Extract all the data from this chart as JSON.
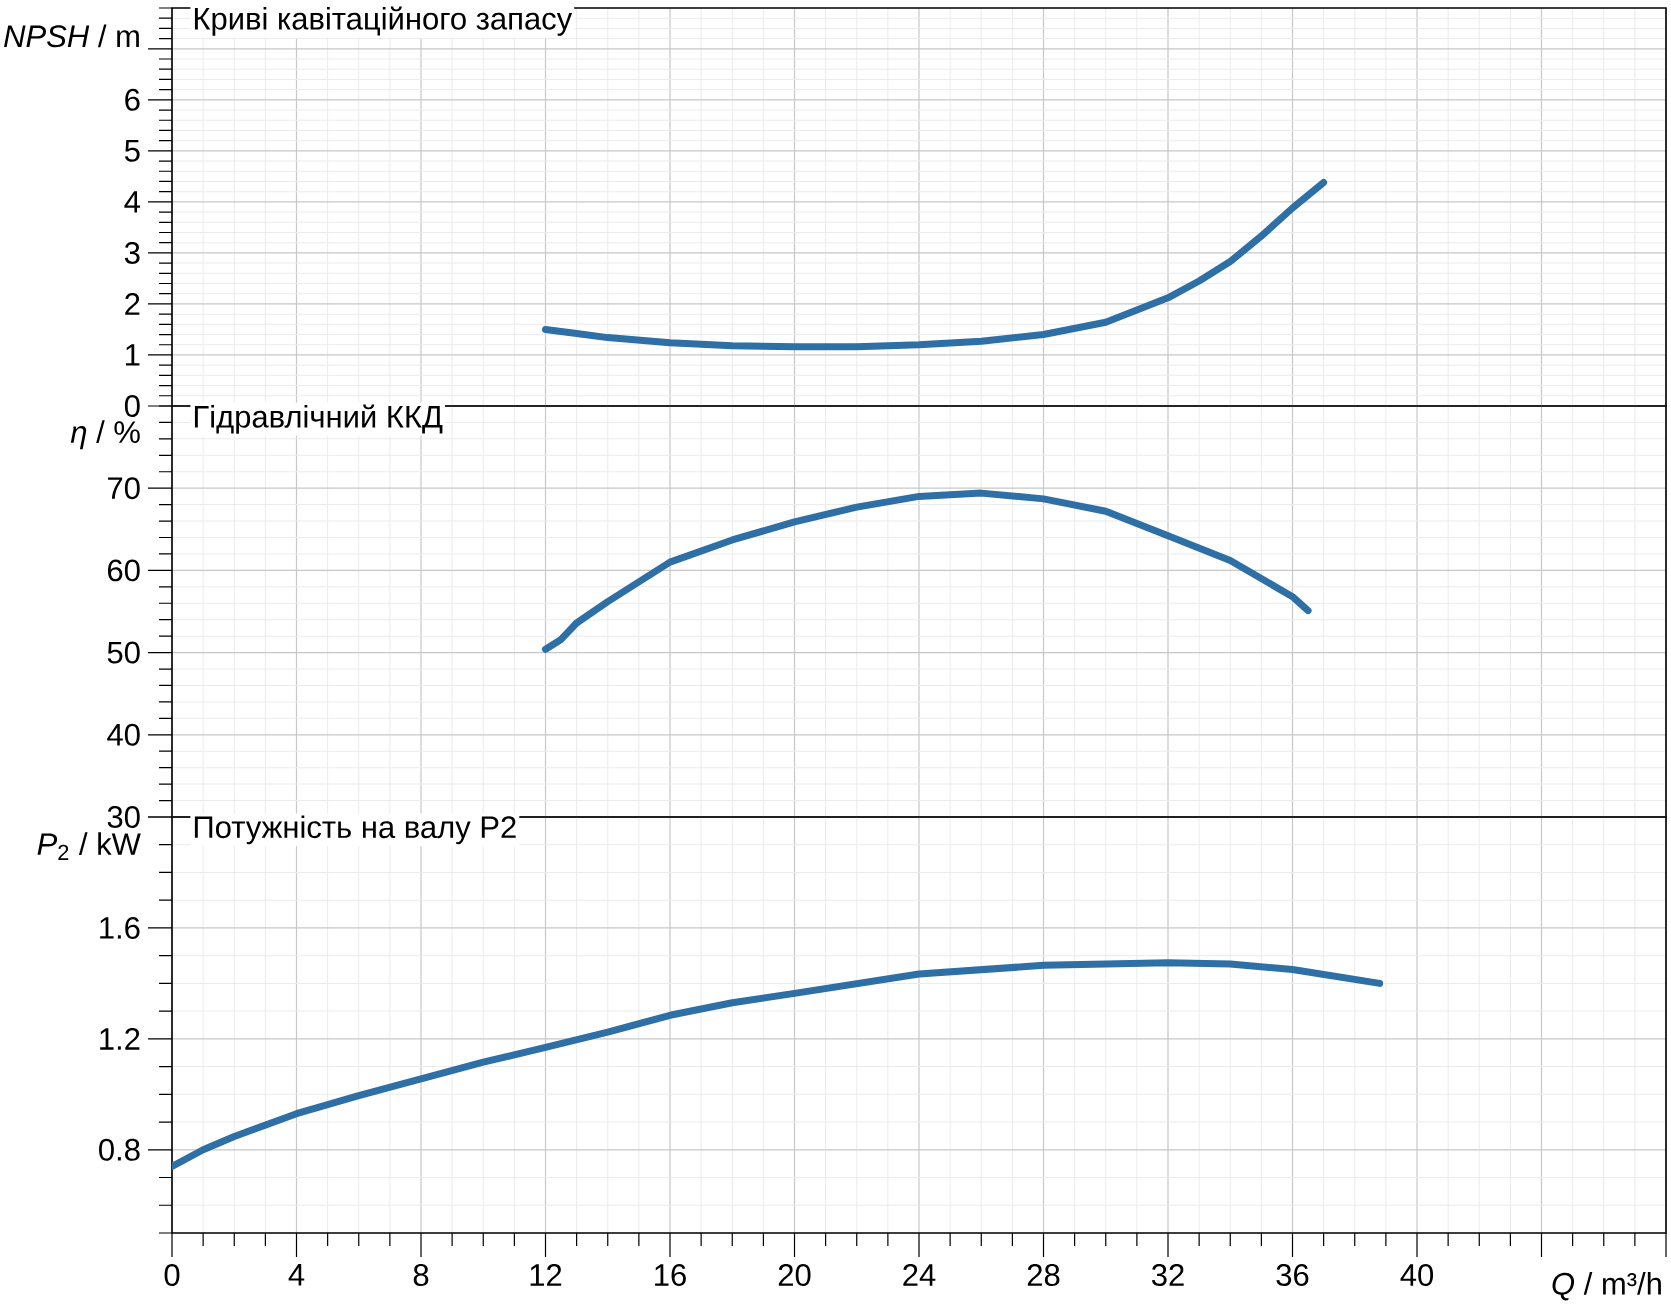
{
  "chart_data": [
    {
      "type": "line",
      "title": "Криві кавітаційного запасу",
      "ylabel": "*NPSH* / m",
      "x": [
        12,
        13,
        14,
        16,
        18,
        20,
        22,
        24,
        26,
        28,
        30,
        32,
        33,
        34,
        35,
        36,
        37
      ],
      "series": [
        {
          "color": "#2e6fa6",
          "values": [
            1.5,
            1.42,
            1.34,
            1.24,
            1.18,
            1.16,
            1.16,
            1.2,
            1.27,
            1.4,
            1.64,
            2.12,
            2.45,
            2.83,
            3.33,
            3.88,
            4.38
          ]
        }
      ],
      "xlim": [
        0,
        48
      ],
      "xticks": [
        0,
        4,
        8,
        12,
        16,
        20,
        24,
        28,
        32,
        36,
        40,
        44,
        48
      ],
      "ylim": [
        0,
        7.8
      ],
      "yticks": [
        0,
        1,
        2,
        3,
        4,
        5,
        6,
        {
          "value": 7,
          "label": null
        }
      ],
      "grid": true,
      "tick_labels": "y"
    },
    {
      "type": "line",
      "title": "Гідравлічний ККД",
      "ylabel": "*η* / %",
      "x": [
        12,
        12.5,
        13,
        14,
        16,
        18,
        20,
        22,
        24,
        26,
        28,
        30,
        32,
        34,
        36,
        36.5
      ],
      "series": [
        {
          "color": "#2e6fa6",
          "values": [
            50.4,
            51.6,
            53.6,
            56.2,
            61.0,
            63.7,
            65.9,
            67.7,
            69.0,
            69.4,
            68.7,
            67.2,
            64.2,
            61.2,
            56.8,
            55.1
          ]
        }
      ],
      "xlim": [
        0,
        48
      ],
      "xticks": [
        0,
        4,
        8,
        12,
        16,
        20,
        24,
        28,
        32,
        36,
        40,
        44,
        48
      ],
      "ylim": [
        30,
        80
      ],
      "yticks": [
        30,
        40,
        50,
        60,
        70
      ],
      "grid": true,
      "tick_labels": "y"
    },
    {
      "type": "line",
      "title": "Потужність на валу P2",
      "ylabel": "*P*$_{2}$ / kW",
      "xlabel": "*Q* / m³/h",
      "x": [
        0,
        1,
        2,
        4,
        6,
        8,
        10,
        12,
        14,
        16,
        18,
        20,
        24,
        28,
        32,
        34,
        36,
        38.8
      ],
      "series": [
        {
          "color": "#2e6fa6",
          "values": [
            0.74,
            0.8,
            0.848,
            0.93,
            0.995,
            1.056,
            1.116,
            1.169,
            1.224,
            1.285,
            1.33,
            1.364,
            1.434,
            1.465,
            1.474,
            1.47,
            1.45,
            1.4
          ]
        }
      ],
      "xlim": [
        0,
        48
      ],
      "xticks": [
        0,
        4,
        8,
        12,
        16,
        20,
        24,
        28,
        32,
        36,
        40,
        {
          "value": 44,
          "label": null
        },
        {
          "value": 48,
          "label": null
        }
      ],
      "ylim": [
        0.5,
        2.0
      ],
      "yticks": [
        0.8,
        1.2,
        1.6,
        {
          "value": 2.0,
          "label": null
        }
      ],
      "grid": true
    }
  ]
}
